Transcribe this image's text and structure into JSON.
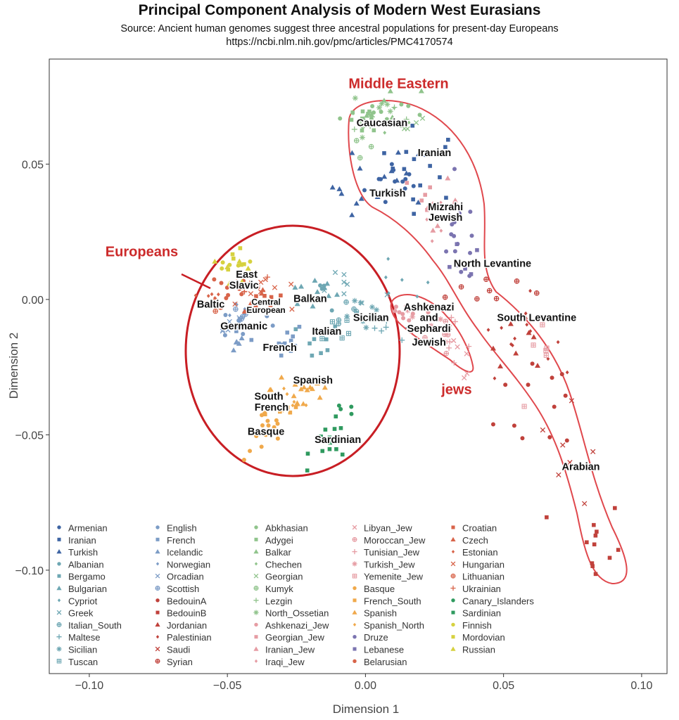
{
  "chart_data": {
    "type": "scatter",
    "title": "Principal Component Analysis of Modern West Eurasians",
    "subtitle": "Source: Ancient human genomes suggest three ancestral populations for present-day Europeans",
    "url": "https://ncbi.nlm.nih.gov/pmc/articles/PMC4170574",
    "xlabel": "Dimension 1",
    "ylabel": "Dimension 2",
    "xlim": [
      -0.1145,
      0.1092
    ],
    "ylim": [
      -0.1382,
      0.0888
    ],
    "xticks": [
      -0.1,
      -0.05,
      0.0,
      0.05,
      0.1
    ],
    "xtick_labels": [
      "−0.10",
      "−0.05",
      "0.00",
      "0.05",
      "0.10"
    ],
    "yticks": [
      0.05,
      0.0,
      -0.05,
      -0.1
    ],
    "ytick_labels": [
      "0.05",
      "0.00",
      "−0.05",
      "−0.10"
    ],
    "grid": false,
    "legend_position": "bottom-inside",
    "colors": {
      "caucasus_me": "#3e64a3",
      "southeu": "#6ea7b3",
      "northeu": "#7c9cc6",
      "levant": "#c0413b",
      "caucasus": "#90c48c",
      "jewish": "#e69ca3",
      "iberia": "#f0a94b",
      "druze": "#7b74b0",
      "easteu": "#d8644a",
      "sard": "#2f9a5f",
      "uralic": "#d6d13f",
      "annotation": "#cc2a2a"
    },
    "series": [
      {
        "name": "Armenian",
        "group": "caucasus_me",
        "marker": "circle",
        "center": [
          0.012,
          0.043
        ],
        "sd": [
          0.006,
          0.005
        ],
        "n": 12
      },
      {
        "name": "Iranian",
        "group": "caucasus_me",
        "marker": "square",
        "center": [
          0.02,
          0.05
        ],
        "sd": [
          0.008,
          0.007
        ],
        "n": 14
      },
      {
        "name": "Turkish",
        "group": "caucasus_me",
        "marker": "triangle",
        "center": [
          0.006,
          0.042
        ],
        "sd": [
          0.009,
          0.008
        ],
        "n": 18
      },
      {
        "name": "Albanian",
        "group": "southeu",
        "marker": "circle",
        "center": [
          -0.015,
          0.002
        ],
        "sd": [
          0.004,
          0.003
        ],
        "n": 6
      },
      {
        "name": "Bergamo",
        "group": "southeu",
        "marker": "square",
        "center": [
          -0.017,
          -0.016
        ],
        "sd": [
          0.004,
          0.004
        ],
        "n": 8
      },
      {
        "name": "Bulgarian",
        "group": "southeu",
        "marker": "triangle",
        "center": [
          -0.019,
          0.002
        ],
        "sd": [
          0.006,
          0.003
        ],
        "n": 10
      },
      {
        "name": "Cypriot",
        "group": "southeu",
        "marker": "diamond",
        "center": [
          0.012,
          0.005
        ],
        "sd": [
          0.006,
          0.004
        ],
        "n": 6
      },
      {
        "name": "Greek",
        "group": "southeu",
        "marker": "x",
        "center": [
          -0.007,
          0.004
        ],
        "sd": [
          0.007,
          0.004
        ],
        "n": 8
      },
      {
        "name": "Italian_South",
        "group": "southeu",
        "marker": "circleplus",
        "center": [
          -0.008,
          -0.004
        ],
        "sd": [
          0.004,
          0.004
        ],
        "n": 6
      },
      {
        "name": "Maltese",
        "group": "southeu",
        "marker": "plus",
        "center": [
          0.008,
          -0.013
        ],
        "sd": [
          0.005,
          0.003
        ],
        "n": 6
      },
      {
        "name": "Sicilian",
        "group": "southeu",
        "marker": "asterisk",
        "center": [
          0.002,
          -0.007
        ],
        "sd": [
          0.005,
          0.003
        ],
        "n": 8
      },
      {
        "name": "Tuscan",
        "group": "southeu",
        "marker": "boxplus",
        "center": [
          -0.01,
          -0.01
        ],
        "sd": [
          0.003,
          0.003
        ],
        "n": 6
      },
      {
        "name": "English",
        "group": "northeu",
        "marker": "circle",
        "center": [
          -0.043,
          -0.009
        ],
        "sd": [
          0.005,
          0.003
        ],
        "n": 10
      },
      {
        "name": "French",
        "group": "northeu",
        "marker": "square",
        "center": [
          -0.033,
          -0.016
        ],
        "sd": [
          0.006,
          0.004
        ],
        "n": 12
      },
      {
        "name": "Icelandic",
        "group": "northeu",
        "marker": "triangle",
        "center": [
          -0.048,
          -0.012
        ],
        "sd": [
          0.003,
          0.004
        ],
        "n": 6
      },
      {
        "name": "Norwegian",
        "group": "northeu",
        "marker": "diamond",
        "center": [
          -0.046,
          -0.005
        ],
        "sd": [
          0.003,
          0.003
        ],
        "n": 6
      },
      {
        "name": "Orcadian",
        "group": "northeu",
        "marker": "x",
        "center": [
          -0.049,
          -0.008
        ],
        "sd": [
          0.003,
          0.003
        ],
        "n": 6
      },
      {
        "name": "Scottish",
        "group": "northeu",
        "marker": "circleplus",
        "center": [
          -0.044,
          -0.006
        ],
        "sd": [
          0.003,
          0.003
        ],
        "n": 5
      },
      {
        "name": "BedouinA",
        "group": "levant",
        "marker": "circle",
        "center": [
          0.068,
          -0.036
        ],
        "sd": [
          0.01,
          0.012
        ],
        "n": 12
      },
      {
        "name": "BedouinB",
        "group": "levant",
        "marker": "square",
        "center": [
          0.083,
          -0.092
        ],
        "sd": [
          0.005,
          0.01
        ],
        "n": 12
      },
      {
        "name": "Jordanian",
        "group": "levant",
        "marker": "triangle",
        "center": [
          0.056,
          -0.012
        ],
        "sd": [
          0.007,
          0.006
        ],
        "n": 8
      },
      {
        "name": "Palestinian",
        "group": "levant",
        "marker": "diamond",
        "center": [
          0.054,
          -0.013
        ],
        "sd": [
          0.007,
          0.007
        ],
        "n": 14
      },
      {
        "name": "Saudi",
        "group": "levant",
        "marker": "x",
        "center": [
          0.075,
          -0.06
        ],
        "sd": [
          0.006,
          0.01
        ],
        "n": 8
      },
      {
        "name": "Syrian",
        "group": "levant",
        "marker": "circleplus",
        "center": [
          0.044,
          0.004
        ],
        "sd": [
          0.01,
          0.004
        ],
        "n": 8
      },
      {
        "name": "Abkhasian",
        "group": "caucasus",
        "marker": "circle",
        "center": [
          0.003,
          0.069
        ],
        "sd": [
          0.006,
          0.003
        ],
        "n": 10
      },
      {
        "name": "Adygei",
        "group": "caucasus",
        "marker": "square",
        "center": [
          0.0,
          0.066
        ],
        "sd": [
          0.006,
          0.004
        ],
        "n": 8
      },
      {
        "name": "Balkar",
        "group": "caucasus",
        "marker": "triangle",
        "center": [
          0.008,
          0.07
        ],
        "sd": [
          0.006,
          0.004
        ],
        "n": 8
      },
      {
        "name": "Chechen",
        "group": "caucasus",
        "marker": "diamond",
        "center": [
          0.01,
          0.068
        ],
        "sd": [
          0.005,
          0.003
        ],
        "n": 6
      },
      {
        "name": "Georgian",
        "group": "caucasus",
        "marker": "x",
        "center": [
          0.014,
          0.066
        ],
        "sd": [
          0.004,
          0.003
        ],
        "n": 5
      },
      {
        "name": "Kumyk",
        "group": "caucasus",
        "marker": "circleplus",
        "center": [
          0.0,
          0.058
        ],
        "sd": [
          0.005,
          0.004
        ],
        "n": 5
      },
      {
        "name": "Lezgin",
        "group": "caucasus",
        "marker": "plus",
        "center": [
          0.006,
          0.064
        ],
        "sd": [
          0.005,
          0.003
        ],
        "n": 5
      },
      {
        "name": "North_Ossetian",
        "group": "caucasus",
        "marker": "asterisk",
        "center": [
          0.004,
          0.07
        ],
        "sd": [
          0.005,
          0.003
        ],
        "n": 6
      },
      {
        "name": "Ashkenazi_Jew",
        "group": "jewish",
        "marker": "circle",
        "center": [
          0.016,
          -0.004
        ],
        "sd": [
          0.005,
          0.003
        ],
        "n": 10
      },
      {
        "name": "Georgian_Jew",
        "group": "jewish",
        "marker": "square",
        "center": [
          0.022,
          0.038
        ],
        "sd": [
          0.004,
          0.004
        ],
        "n": 5
      },
      {
        "name": "Iranian_Jew",
        "group": "jewish",
        "marker": "triangle",
        "center": [
          0.026,
          0.036
        ],
        "sd": [
          0.004,
          0.004
        ],
        "n": 6
      },
      {
        "name": "Iraqi_Jew",
        "group": "jewish",
        "marker": "diamond",
        "center": [
          0.028,
          0.03
        ],
        "sd": [
          0.004,
          0.004
        ],
        "n": 6
      },
      {
        "name": "Libyan_Jew",
        "group": "jewish",
        "marker": "x",
        "center": [
          0.033,
          -0.02
        ],
        "sd": [
          0.004,
          0.005
        ],
        "n": 6
      },
      {
        "name": "Moroccan_Jew",
        "group": "jewish",
        "marker": "circleplus",
        "center": [
          0.028,
          -0.013
        ],
        "sd": [
          0.004,
          0.004
        ],
        "n": 6
      },
      {
        "name": "Tunisian_Jew",
        "group": "jewish",
        "marker": "plus",
        "center": [
          0.03,
          -0.016
        ],
        "sd": [
          0.004,
          0.004
        ],
        "n": 6
      },
      {
        "name": "Turkish_Jew",
        "group": "jewish",
        "marker": "asterisk",
        "center": [
          0.02,
          -0.008
        ],
        "sd": [
          0.004,
          0.003
        ],
        "n": 6
      },
      {
        "name": "Yemenite_Jew",
        "group": "jewish",
        "marker": "boxplus",
        "center": [
          0.063,
          -0.025
        ],
        "sd": [
          0.004,
          0.008
        ],
        "n": 6
      },
      {
        "name": "Basque",
        "group": "iberia",
        "marker": "circle",
        "center": [
          -0.036,
          -0.05
        ],
        "sd": [
          0.004,
          0.005
        ],
        "n": 14
      },
      {
        "name": "French_South",
        "group": "iberia",
        "marker": "square",
        "center": [
          -0.03,
          -0.04
        ],
        "sd": [
          0.004,
          0.004
        ],
        "n": 5
      },
      {
        "name": "Spanish",
        "group": "iberia",
        "marker": "triangle",
        "center": [
          -0.022,
          -0.033
        ],
        "sd": [
          0.006,
          0.005
        ],
        "n": 16
      },
      {
        "name": "Spanish_North",
        "group": "iberia",
        "marker": "diamond",
        "center": [
          -0.026,
          -0.037
        ],
        "sd": [
          0.004,
          0.004
        ],
        "n": 6
      },
      {
        "name": "Druze",
        "group": "druze",
        "marker": "circle",
        "center": [
          0.034,
          0.022
        ],
        "sd": [
          0.004,
          0.008
        ],
        "n": 14
      },
      {
        "name": "Lebanese",
        "group": "druze",
        "marker": "square",
        "center": [
          0.034,
          0.012
        ],
        "sd": [
          0.004,
          0.004
        ],
        "n": 6
      },
      {
        "name": "Belarusian",
        "group": "easteu",
        "marker": "circle",
        "center": [
          -0.05,
          0.003
        ],
        "sd": [
          0.005,
          0.003
        ],
        "n": 8
      },
      {
        "name": "Croatian",
        "group": "easteu",
        "marker": "square",
        "center": [
          -0.037,
          -0.001
        ],
        "sd": [
          0.004,
          0.003
        ],
        "n": 6
      },
      {
        "name": "Czech",
        "group": "easteu",
        "marker": "triangle",
        "center": [
          -0.04,
          0.0
        ],
        "sd": [
          0.004,
          0.003
        ],
        "n": 6
      },
      {
        "name": "Estonian",
        "group": "easteu",
        "marker": "diamond",
        "center": [
          -0.057,
          0.001
        ],
        "sd": [
          0.003,
          0.002
        ],
        "n": 6
      },
      {
        "name": "Hungarian",
        "group": "easteu",
        "marker": "x",
        "center": [
          -0.034,
          0.001
        ],
        "sd": [
          0.005,
          0.003
        ],
        "n": 8
      },
      {
        "name": "Lithuanian",
        "group": "easteu",
        "marker": "circleplus",
        "center": [
          -0.055,
          -0.001
        ],
        "sd": [
          0.003,
          0.002
        ],
        "n": 5
      },
      {
        "name": "Ukrainian",
        "group": "easteu",
        "marker": "plus",
        "center": [
          -0.043,
          0.004
        ],
        "sd": [
          0.005,
          0.003
        ],
        "n": 6
      },
      {
        "name": "Canary_Islanders",
        "group": "sard",
        "marker": "circle",
        "center": [
          -0.008,
          -0.046
        ],
        "sd": [
          0.003,
          0.005
        ],
        "n": 5
      },
      {
        "name": "Sardinian",
        "group": "sard",
        "marker": "square",
        "center": [
          -0.012,
          -0.053
        ],
        "sd": [
          0.004,
          0.004
        ],
        "n": 14
      },
      {
        "name": "Finnish",
        "group": "uralic",
        "marker": "circle",
        "center": [
          -0.049,
          0.012
        ],
        "sd": [
          0.003,
          0.003
        ],
        "n": 5
      },
      {
        "name": "Mordovian",
        "group": "uralic",
        "marker": "square",
        "center": [
          -0.045,
          0.016
        ],
        "sd": [
          0.003,
          0.005
        ],
        "n": 6
      },
      {
        "name": "Russian",
        "group": "uralic",
        "marker": "triangle",
        "center": [
          -0.046,
          0.011
        ],
        "sd": [
          0.003,
          0.003
        ],
        "n": 6
      }
    ],
    "cluster_labels": [
      {
        "text": "Caucasian",
        "x": 0.006,
        "y": 0.064
      },
      {
        "text": "Iranian",
        "x": 0.025,
        "y": 0.053
      },
      {
        "text": "Turkish",
        "x": 0.008,
        "y": 0.038
      },
      {
        "text": "Mizrahi",
        "x": 0.029,
        "y": 0.033
      },
      {
        "text": "Jewish",
        "x": 0.029,
        "y": 0.029
      },
      {
        "text": "North Levantine",
        "x": 0.046,
        "y": 0.012
      },
      {
        "text": "South Levantine",
        "x": 0.062,
        "y": -0.008
      },
      {
        "text": "Arabian",
        "x": 0.078,
        "y": -0.063
      },
      {
        "text": "Ashkenazi",
        "x": 0.023,
        "y": -0.004
      },
      {
        "text": "and",
        "x": 0.023,
        "y": -0.008
      },
      {
        "text": "Sephardi",
        "x": 0.023,
        "y": -0.012
      },
      {
        "text": "Jewish",
        "x": 0.023,
        "y": -0.017
      },
      {
        "text": "Sicilian",
        "x": 0.002,
        "y": -0.008
      },
      {
        "text": "Balkan",
        "x": -0.02,
        "y": -0.001
      },
      {
        "text": "Italian",
        "x": -0.014,
        "y": -0.013
      },
      {
        "text": "East",
        "x": -0.043,
        "y": 0.008
      },
      {
        "text": "Slavic",
        "x": -0.044,
        "y": 0.004
      },
      {
        "text": "Baltic",
        "x": -0.056,
        "y": -0.003
      },
      {
        "text": "Central",
        "x": -0.036,
        "y": -0.002,
        "small": true
      },
      {
        "text": "European",
        "x": -0.036,
        "y": -0.005,
        "small": true
      },
      {
        "text": "Germanic",
        "x": -0.044,
        "y": -0.011
      },
      {
        "text": "French",
        "x": -0.031,
        "y": -0.019
      },
      {
        "text": "Spanish",
        "x": -0.019,
        "y": -0.031
      },
      {
        "text": "South",
        "x": -0.035,
        "y": -0.037
      },
      {
        "text": "French",
        "x": -0.034,
        "y": -0.041
      },
      {
        "text": "Basque",
        "x": -0.036,
        "y": -0.05
      },
      {
        "text": "Sardinian",
        "x": -0.01,
        "y": -0.053
      }
    ],
    "annotations": [
      {
        "text": "Middle Eastern",
        "x": 0.012,
        "y": 0.078
      },
      {
        "text": "Europeans",
        "x": -0.081,
        "y": 0.016
      },
      {
        "text": "jews",
        "x": 0.033,
        "y": -0.035
      }
    ]
  }
}
